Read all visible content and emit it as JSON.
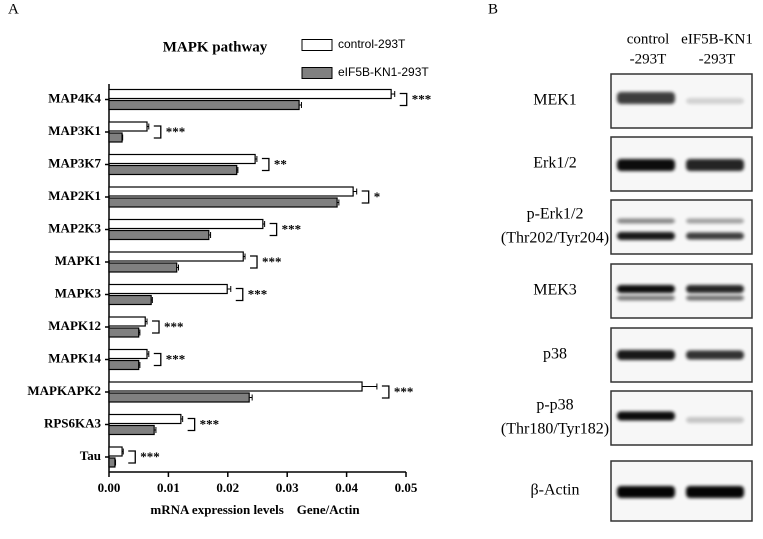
{
  "panel_labels": [
    "A",
    "B"
  ],
  "chart_data": {
    "type": "hbar",
    "title": "MAPK pathway",
    "xlabel": "mRNA expression levels    Gene/Actin",
    "categories": [
      "MAP4K4",
      "MAP3K1",
      "MAP3K7",
      "MAP2K1",
      "MAP2K3",
      "MAPK1",
      "MAPK3",
      "MAPK12",
      "MAPK14",
      "MAPKAPK2",
      "RPS6KA3",
      "Tau"
    ],
    "series": [
      {
        "name": "control-293T",
        "color": "#ffffff",
        "values": [
          0.0475,
          0.0064,
          0.0246,
          0.0411,
          0.0259,
          0.0226,
          0.0199,
          0.0061,
          0.0064,
          0.0426,
          0.0121,
          0.0022
        ],
        "errors": [
          0.0006,
          0.0003,
          0.0003,
          0.0006,
          0.0003,
          0.0003,
          0.0006,
          0.0003,
          0.0003,
          0.0025,
          0.0003,
          0.0002
        ]
      },
      {
        "name": "eIF5B-KN1-293T",
        "color": "#808080",
        "values": [
          0.032,
          0.0022,
          0.0215,
          0.0384,
          0.0168,
          0.0114,
          0.0071,
          0.005,
          0.005,
          0.0236,
          0.0076,
          0.001
        ],
        "errors": [
          0.0004,
          0.0001,
          0.0002,
          0.0003,
          0.0003,
          0.0003,
          0.0002,
          0.0002,
          0.0002,
          0.0005,
          0.0003,
          0.0001
        ]
      }
    ],
    "annotations": [
      "***",
      "***",
      "**",
      "*",
      "***",
      "***",
      "***",
      "***",
      "***",
      "***",
      "***",
      "***"
    ],
    "xlim": [
      0,
      0.05
    ],
    "xticks": [
      {
        "value": 0,
        "label": "0.00"
      },
      0.01,
      0.02,
      0.03,
      0.04,
      0.05
    ]
  },
  "blot": {
    "columns": [
      [
        "control",
        "-293T"
      ],
      [
        "eIF5B-KN1",
        "-293T"
      ]
    ],
    "rows": [
      [
        "MEK1"
      ],
      [
        "Erk1/2"
      ],
      [
        "p-Erk1/2",
        "(Thr202/Tyr204)"
      ],
      [
        "MEK3"
      ],
      [
        "p38"
      ],
      [
        "p-p38",
        "(Thr180/Tyr182)"
      ],
      [
        "β-Actin"
      ]
    ]
  }
}
